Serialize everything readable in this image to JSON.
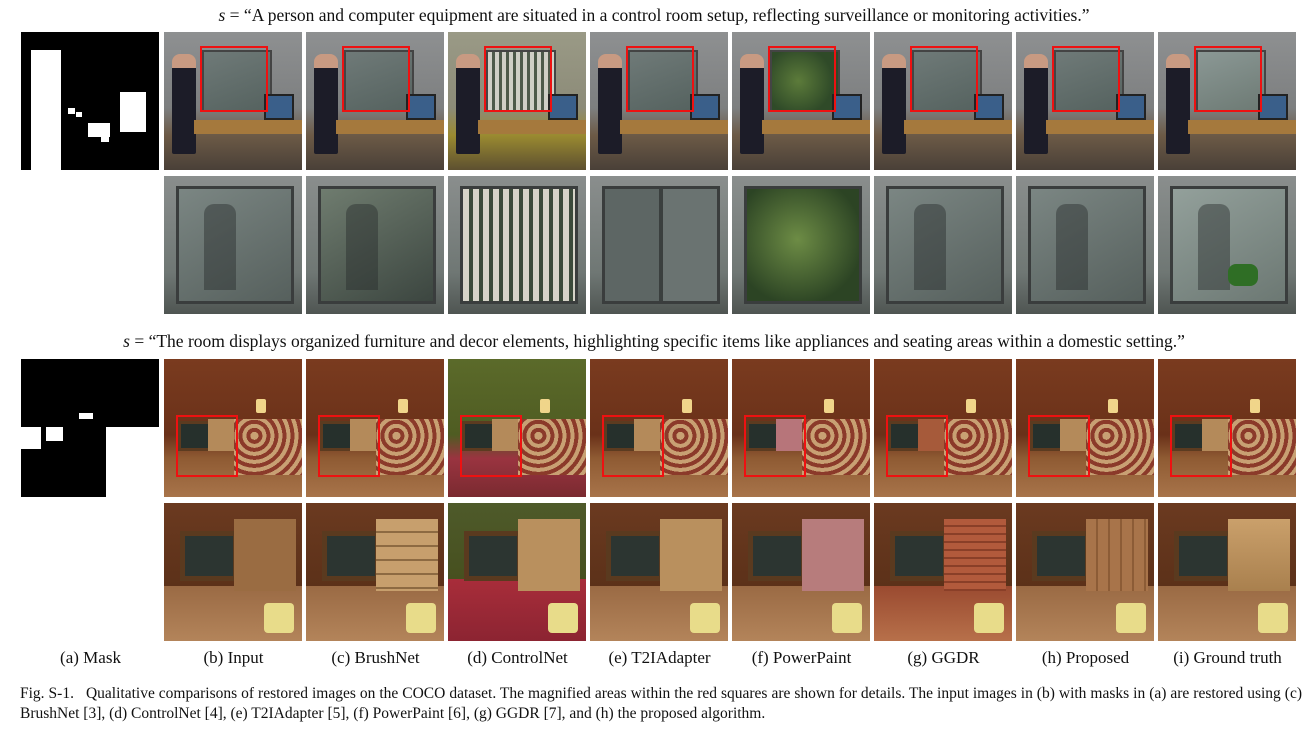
{
  "prompts": [
    {
      "svar": "s",
      "eq": "=",
      "text": "“A person and computer equipment are situated in a control room setup, reflecting surveillance or monitoring activities.”"
    },
    {
      "svar": "s",
      "eq": "=",
      "text": "“The room displays organized furniture and decor elements, highlighting specific items like appliances and seating areas within a domestic setting.”"
    }
  ],
  "column_captions": [
    "(a) Mask",
    "(b) Input",
    "(c) BrushNet",
    "(d) ControlNet",
    "(e) T2IAdapter",
    "(f) PowerPaint",
    "(g) GGDR",
    "(h) Proposed",
    "(i) Ground truth"
  ],
  "caption": {
    "label": "Fig. S-1.",
    "text": "Qualitative comparisons of restored images on the COCO dataset. The magnified areas within the red squares are shown for details. The input images in (b) with masks in (a) are restored using (c) BrushNet [3], (d) ControlNet [4], (e) T2IAdapter [5], (f) PowerPaint [6], (g) GGDR [7], and (h) the proposed algorithm."
  },
  "colors": {
    "highlight_box": "#ee1111",
    "mask_bg": "#000000",
    "mask_fg": "#ffffff"
  }
}
